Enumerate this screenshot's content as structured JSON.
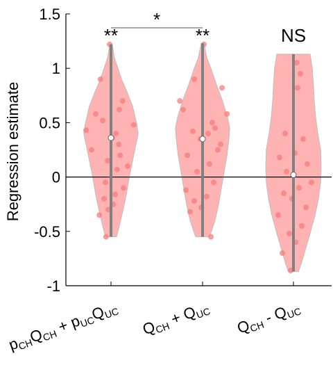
{
  "chart_data": {
    "type": "violin",
    "ylabel": "Regression estimate",
    "ylim": [
      -1,
      1.5
    ],
    "yticks": [
      -1,
      -0.5,
      0,
      0.5,
      1,
      1.5
    ],
    "ytick_labels": [
      "-1",
      "-0.5",
      "0",
      "0.5",
      "1",
      "1.5"
    ],
    "reference_line_y": 0,
    "fill_color": "#ffb3b3",
    "point_color": "#f77c7c",
    "median_color": "#ffffff",
    "whisker_color": "#808080",
    "categories": [
      {
        "label_parts": [
          {
            "t": "p",
            "s": false
          },
          {
            "t": "CH",
            "s": true
          },
          {
            "t": "Q",
            "s": false
          },
          {
            "t": "CH",
            "s": true
          },
          {
            "t": " + p",
            "s": false
          },
          {
            "t": "UC",
            "s": true
          },
          {
            "t": "Q",
            "s": false
          },
          {
            "t": "UC",
            "s": true
          }
        ],
        "significance": "**",
        "median": 0.36,
        "min": -0.55,
        "max": 1.22,
        "density": [
          [
            1.22,
            0.05
          ],
          [
            1.1,
            0.12
          ],
          [
            1.0,
            0.25
          ],
          [
            0.9,
            0.38
          ],
          [
            0.8,
            0.55
          ],
          [
            0.65,
            0.78
          ],
          [
            0.5,
            0.92
          ],
          [
            0.4,
            0.98
          ],
          [
            0.3,
            0.9
          ],
          [
            0.15,
            0.78
          ],
          [
            0.0,
            0.66
          ],
          [
            -0.15,
            0.56
          ],
          [
            -0.3,
            0.44
          ],
          [
            -0.45,
            0.3
          ],
          [
            -0.55,
            0.2
          ]
        ],
        "points": [
          [
            1.22,
            -0.05
          ],
          [
            0.9,
            -0.38
          ],
          [
            0.7,
            0.42
          ],
          [
            0.62,
            0.3
          ],
          [
            0.58,
            -0.55
          ],
          [
            0.52,
            -0.3
          ],
          [
            0.48,
            0.82
          ],
          [
            0.43,
            -0.9
          ],
          [
            0.4,
            0.18
          ],
          [
            0.36,
            0.05
          ],
          [
            0.3,
            0.28
          ],
          [
            0.25,
            -0.7
          ],
          [
            0.2,
            0.33
          ],
          [
            0.15,
            -0.12
          ],
          [
            0.1,
            0.6
          ],
          [
            0.07,
            0.22
          ],
          [
            -0.05,
            -0.2
          ],
          [
            -0.1,
            0.45
          ],
          [
            -0.16,
            0.15
          ],
          [
            -0.2,
            -0.25
          ],
          [
            -0.25,
            0.08
          ],
          [
            -0.3,
            -0.1
          ],
          [
            -0.35,
            -0.42
          ],
          [
            -0.55,
            -0.18
          ]
        ]
      },
      {
        "label_parts": [
          {
            "t": "Q",
            "s": false
          },
          {
            "t": "CH",
            "s": true
          },
          {
            "t": " + Q",
            "s": false
          },
          {
            "t": "UC",
            "s": true
          }
        ],
        "significance": "**",
        "median": 0.35,
        "min": -0.55,
        "max": 1.23,
        "density": [
          [
            1.23,
            0.05
          ],
          [
            1.1,
            0.15
          ],
          [
            1.0,
            0.3
          ],
          [
            0.85,
            0.5
          ],
          [
            0.7,
            0.72
          ],
          [
            0.55,
            0.9
          ],
          [
            0.45,
            0.98
          ],
          [
            0.35,
            0.95
          ],
          [
            0.2,
            0.88
          ],
          [
            0.05,
            0.78
          ],
          [
            -0.1,
            0.68
          ],
          [
            -0.25,
            0.58
          ],
          [
            -0.4,
            0.45
          ],
          [
            -0.5,
            0.32
          ],
          [
            -0.55,
            0.25
          ]
        ],
        "points": [
          [
            1.22,
            0.05
          ],
          [
            0.9,
            -0.3
          ],
          [
            0.82,
            0.7
          ],
          [
            0.7,
            -0.82
          ],
          [
            0.62,
            -0.7
          ],
          [
            0.58,
            0.88
          ],
          [
            0.5,
            0.35
          ],
          [
            0.45,
            0.45
          ],
          [
            0.42,
            -0.35
          ],
          [
            0.4,
            0.2
          ],
          [
            0.35,
            -0.08
          ],
          [
            0.3,
            0.65
          ],
          [
            0.25,
            0.55
          ],
          [
            0.2,
            -0.55
          ],
          [
            0.12,
            0.25
          ],
          [
            0.05,
            -0.2
          ],
          [
            -0.05,
            0.4
          ],
          [
            -0.12,
            -0.6
          ],
          [
            -0.18,
            0.15
          ],
          [
            -0.22,
            -0.3
          ],
          [
            -0.28,
            -0.05
          ],
          [
            -0.32,
            -0.45
          ],
          [
            -0.55,
            0.3
          ]
        ]
      },
      {
        "label_parts": [
          {
            "t": "Q",
            "s": false
          },
          {
            "t": "CH",
            "s": true
          },
          {
            "t": " - Q",
            "s": false
          },
          {
            "t": "UC",
            "s": true
          }
        ],
        "significance": "NS",
        "median": 0.02,
        "min": -0.87,
        "max": 1.13,
        "density": [
          [
            1.13,
            0.6
          ],
          [
            1.0,
            0.68
          ],
          [
            0.85,
            0.72
          ],
          [
            0.7,
            0.75
          ],
          [
            0.55,
            0.8
          ],
          [
            0.4,
            0.88
          ],
          [
            0.25,
            0.98
          ],
          [
            0.1,
            1.0
          ],
          [
            -0.05,
            0.98
          ],
          [
            -0.2,
            0.9
          ],
          [
            -0.35,
            0.78
          ],
          [
            -0.5,
            0.62
          ],
          [
            -0.65,
            0.45
          ],
          [
            -0.8,
            0.28
          ],
          [
            -0.87,
            0.18
          ]
        ],
        "points": [
          [
            1.05,
            0.12
          ],
          [
            0.95,
            0.25
          ],
          [
            0.82,
            0.15
          ],
          [
            0.4,
            -0.3
          ],
          [
            0.35,
            0.35
          ],
          [
            0.22,
            0.05
          ],
          [
            0.18,
            -0.5
          ],
          [
            0.12,
            0.5
          ],
          [
            0.05,
            -0.25
          ],
          [
            -0.05,
            0.65
          ],
          [
            -0.1,
            0.2
          ],
          [
            -0.15,
            -0.35
          ],
          [
            -0.2,
            -0.05
          ],
          [
            -0.28,
            0.45
          ],
          [
            -0.35,
            -0.55
          ],
          [
            -0.45,
            0.3
          ],
          [
            -0.52,
            -0.15
          ],
          [
            -0.6,
            0.08
          ],
          [
            -0.7,
            -0.4
          ],
          [
            -0.86,
            -0.1
          ]
        ]
      }
    ],
    "comparison": {
      "from": 0,
      "to": 1,
      "label": "*"
    }
  }
}
